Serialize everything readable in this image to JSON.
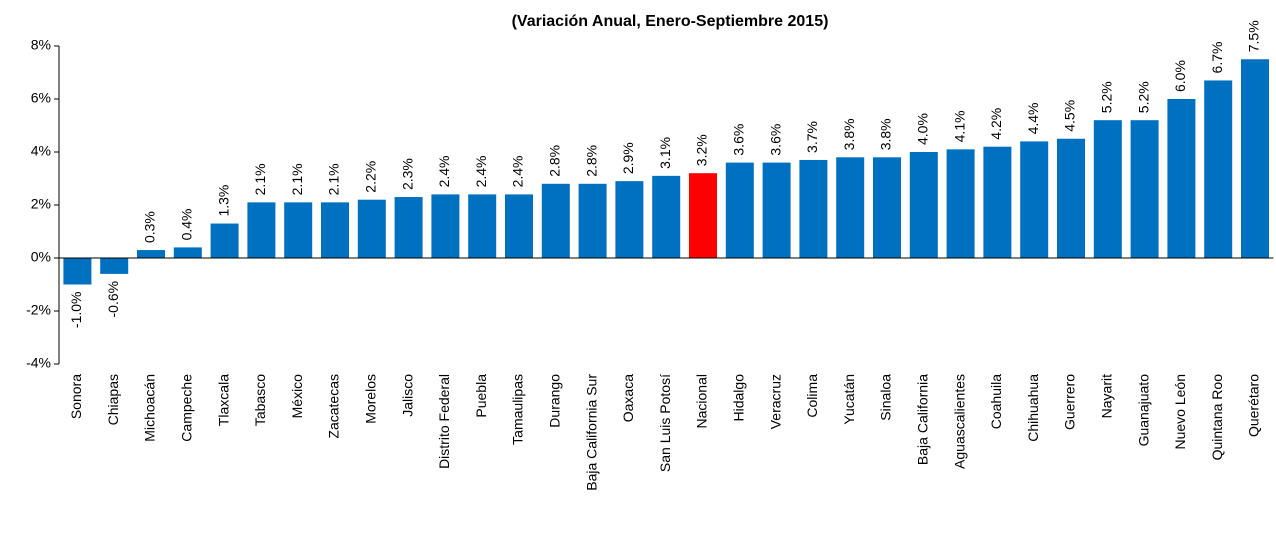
{
  "chart_data": {
    "type": "bar",
    "title": "(Variación Anual, Enero-Septiembre 2015)",
    "categories": [
      "Sonora",
      "Chiapas",
      "Michoacán",
      "Campeche",
      "Tlaxcala",
      "Tabasco",
      "México",
      "Zacatecas",
      "Morelos",
      "Jalisco",
      "Distrito Federal",
      "Puebla",
      "Tamaulipas",
      "Durango",
      "Baja California Sur",
      "Oaxaca",
      "San Luis Potosí",
      "Nacional",
      "Hidalgo",
      "Veracruz",
      "Colima",
      "Yucatán",
      "Sinaloa",
      "Baja California",
      "Aguascalientes",
      "Coahuila",
      "Chihuahua",
      "Guerrero",
      "Nayarit",
      "Guanajuato",
      "Nuevo León",
      "Quintana Roo",
      "Querétaro"
    ],
    "values": [
      -1.0,
      -0.6,
      0.3,
      0.4,
      1.3,
      2.1,
      2.1,
      2.1,
      2.2,
      2.3,
      2.4,
      2.4,
      2.4,
      2.8,
      2.8,
      2.9,
      3.1,
      3.2,
      3.6,
      3.6,
      3.7,
      3.8,
      3.8,
      4.0,
      4.1,
      4.2,
      4.4,
      4.5,
      5.2,
      5.2,
      6.0,
      6.7,
      7.5
    ],
    "value_labels": [
      "-1.0%",
      "-0.6%",
      "0.3%",
      "0.4%",
      "1.3%",
      "2.1%",
      "2.1%",
      "2.1%",
      "2.2%",
      "2.3%",
      "2.4%",
      "2.4%",
      "2.4%",
      "2.8%",
      "2.8%",
      "2.9%",
      "3.1%",
      "3.2%",
      "3.6%",
      "3.6%",
      "3.7%",
      "3.8%",
      "3.8%",
      "4.0%",
      "4.1%",
      "4.2%",
      "4.4%",
      "4.5%",
      "5.2%",
      "5.2%",
      "6.0%",
      "6.7%",
      "7.5%"
    ],
    "colors": [
      "#0070c0",
      "#0070c0",
      "#0070c0",
      "#0070c0",
      "#0070c0",
      "#0070c0",
      "#0070c0",
      "#0070c0",
      "#0070c0",
      "#0070c0",
      "#0070c0",
      "#0070c0",
      "#0070c0",
      "#0070c0",
      "#0070c0",
      "#0070c0",
      "#0070c0",
      "#ff0000",
      "#0070c0",
      "#0070c0",
      "#0070c0",
      "#0070c0",
      "#0070c0",
      "#0070c0",
      "#0070c0",
      "#0070c0",
      "#0070c0",
      "#0070c0",
      "#0070c0",
      "#0070c0",
      "#0070c0",
      "#0070c0",
      "#0070c0"
    ],
    "ylim": [
      -4,
      8
    ],
    "yticks": [
      {
        "value": -4,
        "label": "-4%"
      },
      {
        "value": -2,
        "label": "-2%"
      },
      {
        "value": 0,
        "label": "0%"
      },
      {
        "value": 2,
        "label": "2%"
      },
      {
        "value": 4,
        "label": "4%"
      },
      {
        "value": 6,
        "label": "6%"
      },
      {
        "value": 8,
        "label": "8%"
      }
    ],
    "grid": false
  }
}
